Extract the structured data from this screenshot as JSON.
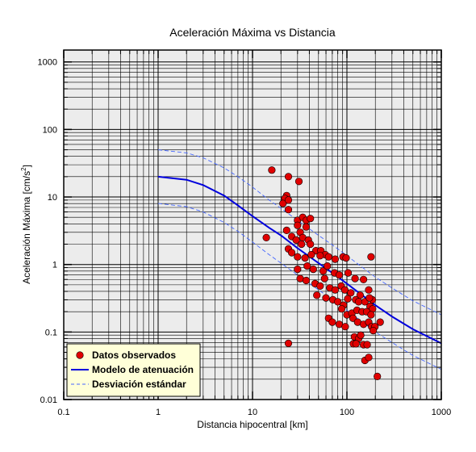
{
  "chart_data": {
    "type": "scatter",
    "title": "Aceleración Máxima vs Distancia",
    "xlabel": "Distancia hipocentral [km]",
    "ylabel_main": "Aceleración Máxima [cm/s",
    "ylabel_sup": "2",
    "ylabel_end": "]",
    "x_scale": "log",
    "y_scale": "log",
    "xlim": [
      0.1,
      1000
    ],
    "ylim": [
      0.01,
      1500
    ],
    "grid": true,
    "legend_position": "bottom-left",
    "x_ticks": [
      {
        "value": 0.1,
        "label": "0.1"
      },
      {
        "value": 1,
        "label": "1"
      },
      {
        "value": 10,
        "label": "10"
      },
      {
        "value": 100,
        "label": "100"
      },
      {
        "value": 1000,
        "label": "1000"
      }
    ],
    "y_ticks": [
      {
        "value": 0.01,
        "label": "0.01"
      },
      {
        "value": 0.1,
        "label": "0.1"
      },
      {
        "value": 1,
        "label": "1"
      },
      {
        "value": 10,
        "label": "10"
      },
      {
        "value": 100,
        "label": "100"
      },
      {
        "value": 1000,
        "label": "1000"
      }
    ],
    "colors": {
      "points": "#e00000",
      "model": "#0000dd",
      "stddev": "#4466ff",
      "plot_bg": "#ececec",
      "legend_bg": "#ffffd8"
    },
    "series": [
      {
        "name": "Datos observados",
        "kind": "points",
        "points": [
          [
            16,
            25
          ],
          [
            24,
            20
          ],
          [
            31,
            17
          ],
          [
            23,
            10.5
          ],
          [
            22,
            9.5
          ],
          [
            21,
            8
          ],
          [
            24,
            6.5
          ],
          [
            24,
            9
          ],
          [
            30,
            4.5
          ],
          [
            30,
            3.8
          ],
          [
            34,
            5
          ],
          [
            37,
            4.5
          ],
          [
            41,
            4.8
          ],
          [
            32,
            3
          ],
          [
            34,
            2.5
          ],
          [
            39,
            2.3
          ],
          [
            37,
            3.6
          ],
          [
            14,
            2.5
          ],
          [
            23,
            3.2
          ],
          [
            26,
            2.6
          ],
          [
            29,
            2.3
          ],
          [
            33,
            2
          ],
          [
            41,
            2
          ],
          [
            47,
            1.6
          ],
          [
            53,
            1.6
          ],
          [
            59,
            1.4
          ],
          [
            24,
            1.7
          ],
          [
            26,
            1.5
          ],
          [
            30,
            1.3
          ],
          [
            36,
            1.25
          ],
          [
            42,
            1.4
          ],
          [
            52,
            1.35
          ],
          [
            64,
            1.3
          ],
          [
            75,
            1.2
          ],
          [
            91,
            1.3
          ],
          [
            98,
            1.25
          ],
          [
            180,
            1.3
          ],
          [
            30,
            0.85
          ],
          [
            38,
            0.95
          ],
          [
            44,
            0.85
          ],
          [
            56,
            0.8
          ],
          [
            62,
            0.95
          ],
          [
            74,
            0.75
          ],
          [
            83,
            0.7
          ],
          [
            103,
            0.75
          ],
          [
            122,
            0.62
          ],
          [
            150,
            0.6
          ],
          [
            32,
            0.62
          ],
          [
            37,
            0.58
          ],
          [
            46,
            0.52
          ],
          [
            52,
            0.48
          ],
          [
            58,
            0.62
          ],
          [
            66,
            0.45
          ],
          [
            75,
            0.42
          ],
          [
            87,
            0.48
          ],
          [
            95,
            0.42
          ],
          [
            110,
            0.38
          ],
          [
            138,
            0.35
          ],
          [
            170,
            0.42
          ],
          [
            186,
            0.3
          ],
          [
            48,
            0.35
          ],
          [
            60,
            0.32
          ],
          [
            71,
            0.3
          ],
          [
            80,
            0.28
          ],
          [
            92,
            0.25
          ],
          [
            102,
            0.31
          ],
          [
            124,
            0.3
          ],
          [
            133,
            0.28
          ],
          [
            155,
            0.28
          ],
          [
            173,
            0.32
          ],
          [
            176,
            0.24
          ],
          [
            187,
            0.22
          ],
          [
            88,
            0.22
          ],
          [
            100,
            0.18
          ],
          [
            113,
            0.19
          ],
          [
            128,
            0.21
          ],
          [
            145,
            0.2
          ],
          [
            162,
            0.2
          ],
          [
            180,
            0.18
          ],
          [
            64,
            0.16
          ],
          [
            70,
            0.14
          ],
          [
            83,
            0.13
          ],
          [
            96,
            0.12
          ],
          [
            116,
            0.16
          ],
          [
            130,
            0.14
          ],
          [
            150,
            0.13
          ],
          [
            170,
            0.14
          ],
          [
            183,
            0.12
          ],
          [
            198,
            0.12
          ],
          [
            225,
            0.14
          ],
          [
            190,
            0.105
          ],
          [
            120,
            0.085
          ],
          [
            133,
            0.08
          ],
          [
            140,
            0.09
          ],
          [
            117,
            0.067
          ],
          [
            125,
            0.067
          ],
          [
            150,
            0.065
          ],
          [
            164,
            0.065
          ],
          [
            24,
            0.068
          ],
          [
            155,
            0.038
          ],
          [
            170,
            0.042
          ],
          [
            210,
            0.022
          ]
        ]
      },
      {
        "name": "Modelo de atenuación",
        "kind": "line",
        "points": [
          [
            1,
            20
          ],
          [
            2,
            18
          ],
          [
            3,
            15
          ],
          [
            5,
            10.5
          ],
          [
            7,
            7.5
          ],
          [
            10,
            5.2
          ],
          [
            15,
            3.5
          ],
          [
            20,
            2.7
          ],
          [
            30,
            1.75
          ],
          [
            50,
            1.05
          ],
          [
            70,
            0.75
          ],
          [
            100,
            0.52
          ],
          [
            200,
            0.25
          ],
          [
            300,
            0.17
          ],
          [
            500,
            0.11
          ],
          [
            1000,
            0.068
          ]
        ]
      },
      {
        "name": "Desviación estándar",
        "kind": "dashed",
        "points": [
          [
            1,
            50
          ],
          [
            2,
            45
          ],
          [
            3,
            38
          ],
          [
            5,
            27
          ],
          [
            7,
            20
          ],
          [
            10,
            14
          ],
          [
            15,
            9
          ],
          [
            20,
            6.8
          ],
          [
            30,
            4.5
          ],
          [
            50,
            2.7
          ],
          [
            70,
            1.95
          ],
          [
            100,
            1.35
          ],
          [
            200,
            0.65
          ],
          [
            300,
            0.45
          ],
          [
            500,
            0.29
          ],
          [
            1000,
            0.18
          ]
        ]
      },
      {
        "kind": "dashed",
        "points": [
          [
            1,
            8
          ],
          [
            2,
            7.2
          ],
          [
            3,
            6
          ],
          [
            5,
            4.2
          ],
          [
            7,
            3.1
          ],
          [
            10,
            2.15
          ],
          [
            15,
            1.4
          ],
          [
            20,
            1.05
          ],
          [
            30,
            0.7
          ],
          [
            50,
            0.42
          ],
          [
            70,
            0.3
          ],
          [
            100,
            0.21
          ],
          [
            200,
            0.1
          ],
          [
            300,
            0.07
          ],
          [
            500,
            0.045
          ],
          [
            1000,
            0.028
          ]
        ]
      }
    ]
  }
}
